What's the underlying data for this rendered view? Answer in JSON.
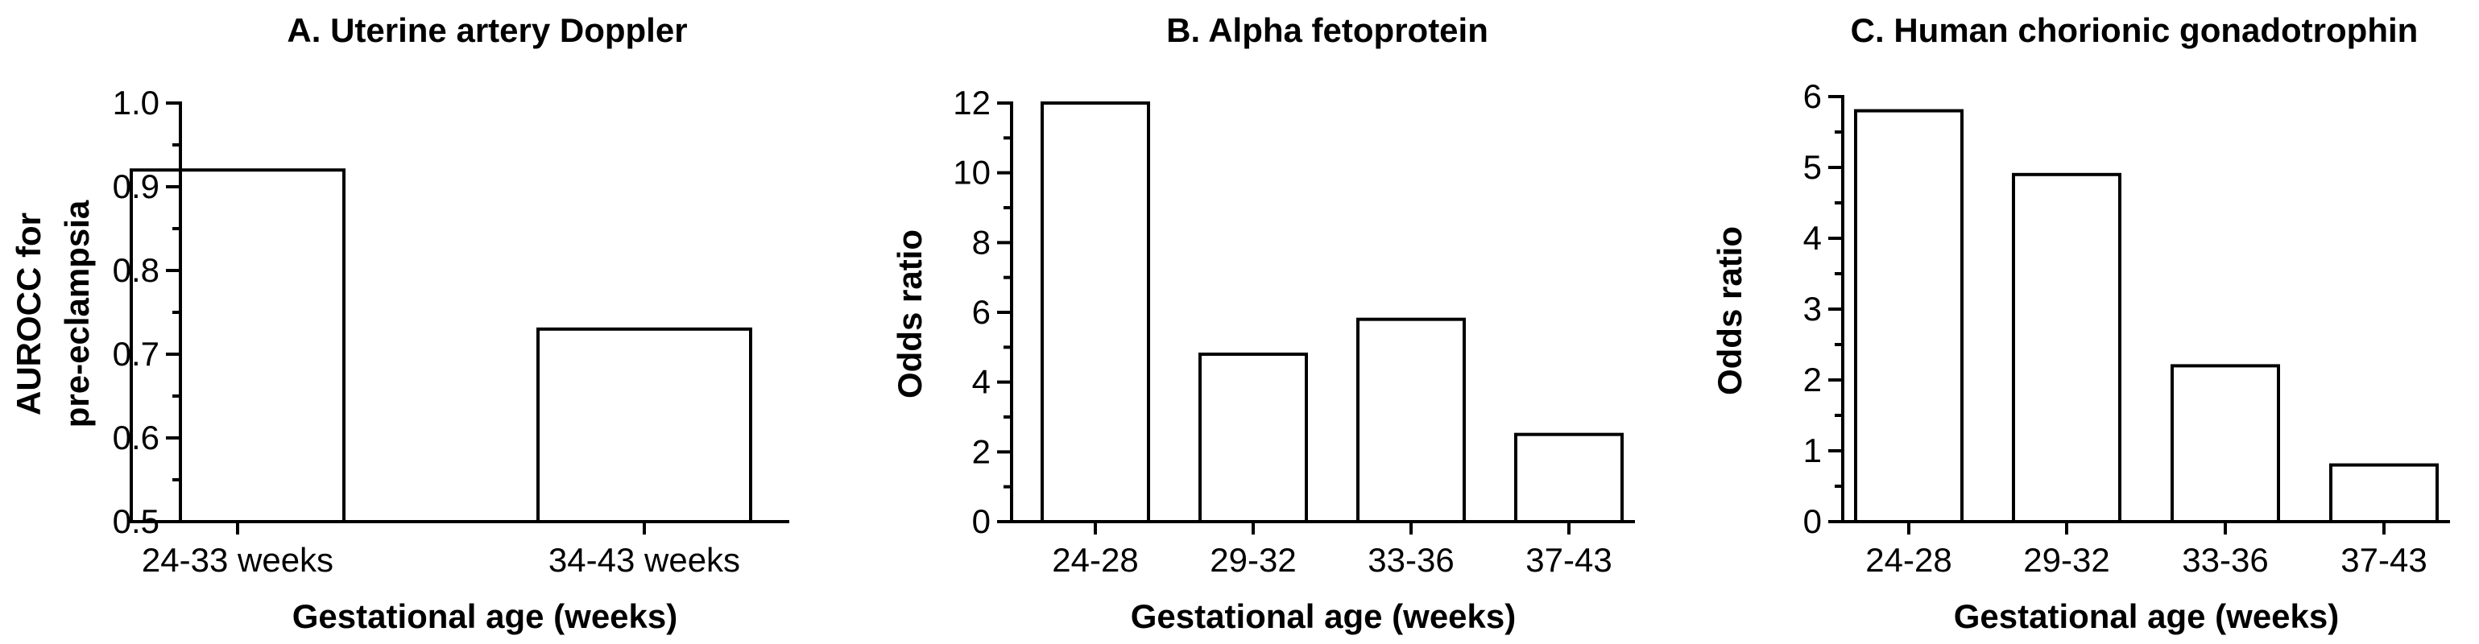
{
  "chart_data": [
    {
      "type": "bar",
      "title": "A. Uterine artery Doppler",
      "xlabel": "Gestational age (weeks)",
      "ylabel_lines": [
        "AUROCC for",
        "pre-eclampsia"
      ],
      "categories": [
        "24-33 weeks",
        "34-43 weeks"
      ],
      "values": [
        0.92,
        0.73
      ],
      "ylim": [
        0.5,
        1.0
      ],
      "yticks": [
        "0.5",
        "0.6",
        "0.7",
        "0.8",
        "0.9",
        "1.0"
      ],
      "ytick_values": [
        0.5,
        0.6,
        0.7,
        0.8,
        0.9,
        1.0
      ]
    },
    {
      "type": "bar",
      "title": "B. Alpha fetoprotein",
      "xlabel": "Gestational age (weeks)",
      "ylabel_lines": [
        "Odds ratio"
      ],
      "categories": [
        "24-28",
        "29-32",
        "33-36",
        "37-43"
      ],
      "values": [
        12.0,
        4.8,
        5.8,
        2.5
      ],
      "ylim": [
        0,
        12
      ],
      "yticks": [
        "0",
        "2",
        "4",
        "6",
        "8",
        "10",
        "12"
      ],
      "ytick_values": [
        0,
        2,
        4,
        6,
        8,
        10,
        12
      ]
    },
    {
      "type": "bar",
      "title": "C. Human chorionic gonadotrophin",
      "xlabel": "Gestational age (weeks)",
      "ylabel_lines": [
        "Odds ratio"
      ],
      "categories": [
        "24-28",
        "29-32",
        "33-36",
        "37-43"
      ],
      "values": [
        5.8,
        4.9,
        2.2,
        0.8
      ],
      "ylim": [
        0,
        6
      ],
      "yticks": [
        "0",
        "1",
        "2",
        "3",
        "4",
        "5",
        "6"
      ],
      "ytick_values": [
        0,
        1,
        2,
        3,
        4,
        5,
        6
      ]
    }
  ]
}
